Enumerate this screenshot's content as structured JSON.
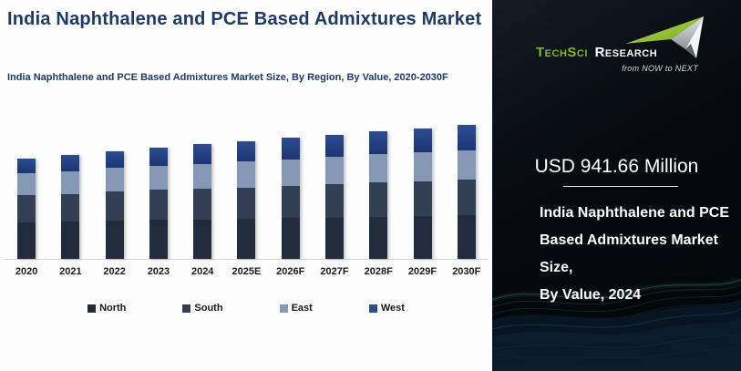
{
  "page": {
    "title": "India Naphthalene and PCE Based Admixtures Market",
    "subtitle": "India Naphthalene and PCE Based Admixtures Market Size, By Region, By Value, 2020-2030F"
  },
  "chart_data": {
    "type": "bar",
    "stacked": true,
    "title": "India Naphthalene and PCE Based Admixtures Market Size, By Region, By Value, 2020-2030F",
    "unit": "USD Million",
    "grid": false,
    "legend_position": "bottom",
    "categories": [
      "2020",
      "2021",
      "2022",
      "2023",
      "2024",
      "2025E",
      "2026F",
      "2027F",
      "2028F",
      "2029F",
      "2030F"
    ],
    "series": [
      {
        "name": "North",
        "color": "#222b3b",
        "values": [
          299,
          306,
          316,
          324,
          324,
          327,
          334,
          334,
          344,
          351,
          359
        ]
      },
      {
        "name": "South",
        "color": "#333f55",
        "values": [
          224,
          229,
          234,
          247,
          252,
          259,
          267,
          279,
          282,
          286,
          291
        ]
      },
      {
        "name": "East",
        "color": "#8599b6",
        "values": [
          179,
          182,
          194,
          194,
          202,
          214,
          217,
          224,
          232,
          237,
          237
        ]
      },
      {
        "name": "West",
        "color": "#1d3572",
        "color_top": "#2c4d92",
        "values": [
          120,
          132,
          137,
          147,
          164,
          162,
          177,
          179,
          189,
          194,
          211
        ]
      }
    ],
    "totals_note_2024": "941.66",
    "ylim": [
      0,
      1100
    ]
  },
  "panel": {
    "logo": {
      "brand_green": "TechSci",
      "brand_white": "Research",
      "tagline": "from NOW to NEXT"
    },
    "highlight_value": "USD 941.66 Million",
    "description_lines": [
      "India Naphthalene and PCE",
      "Based Admixtures Market Size,",
      "By Value, 2024"
    ],
    "colors": {
      "background": "#05080c",
      "accent_green": "#7db82a",
      "wave_teal": "#2f8068",
      "text": "#ffffff"
    }
  }
}
